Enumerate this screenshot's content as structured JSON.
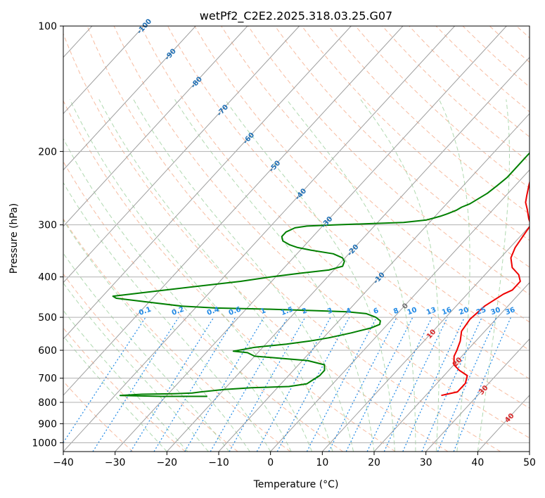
{
  "chart_data": {
    "type": "line",
    "title": "wetPf2_C2E2.2025.318.03.25.G07",
    "xlabel": "Temperature (°C)",
    "ylabel": "Pressure (hPa)",
    "xlim": [
      -40,
      50
    ],
    "ylim": [
      1050,
      100
    ],
    "y_scale": "log",
    "grid": true,
    "x_ticks": [
      -40,
      -30,
      -20,
      -10,
      0,
      10,
      20,
      30,
      40,
      50
    ],
    "y_ticks": [
      100,
      200,
      300,
      400,
      500,
      600,
      700,
      800,
      900,
      1000
    ],
    "colors": {
      "temperature": "#ee0000",
      "dewpoint": "#007f00",
      "isotherm": "#9e9e9e",
      "dry_adiabat": "#f4a582",
      "moist_adiabat": "#8fc98f",
      "mixing_ratio": "#1e88e5",
      "isotherm_label_neg": "#1f6fb4",
      "isotherm_label_pos": "#d62728",
      "isotherm_label_zero": "#707070"
    },
    "isotherm_labels": [
      "-100",
      "-90",
      "-80",
      "-70",
      "-60",
      "-50",
      "-40",
      "-30",
      "-20",
      "-10",
      "0",
      "10",
      "20",
      "30",
      "40"
    ],
    "mixing_ratio_labels": [
      "0.1",
      "0.2",
      "0.4",
      "0.6",
      "1",
      "1.5",
      "2",
      "3",
      "4",
      "6",
      "8",
      "10",
      "13",
      "16",
      "20",
      "25",
      "30",
      "36"
    ],
    "series": [
      {
        "key": "temperature",
        "points": [
          [
            23.0,
            770
          ],
          [
            25.5,
            755
          ],
          [
            25.5,
            720
          ],
          [
            24.5,
            690
          ],
          [
            22,
            670
          ],
          [
            20,
            650
          ],
          [
            18.5,
            620
          ],
          [
            18,
            600
          ],
          [
            17,
            570
          ],
          [
            15.5,
            540
          ],
          [
            15,
            505
          ],
          [
            15.5,
            470
          ],
          [
            17,
            440
          ],
          [
            18,
            430
          ],
          [
            18,
            410
          ],
          [
            16.5,
            395
          ],
          [
            14,
            380
          ],
          [
            12,
            360
          ],
          [
            11,
            340
          ],
          [
            10.5,
            320
          ],
          [
            10,
            300
          ],
          [
            8.5,
            290
          ],
          [
            6.5,
            275
          ],
          [
            5,
            265
          ],
          [
            4,
            255
          ],
          [
            2.5,
            240
          ],
          [
            1,
            225
          ],
          [
            -0.5,
            210
          ],
          [
            -1,
            200
          ],
          [
            -1,
            190
          ],
          [
            -0.5,
            175
          ],
          [
            0.5,
            165
          ],
          [
            1.5,
            158
          ],
          [
            2.5,
            152
          ],
          [
            3,
            145
          ],
          [
            3.5,
            138
          ],
          [
            3.5,
            130
          ],
          [
            4,
            125
          ],
          [
            4.5,
            120
          ],
          [
            5.5,
            116
          ],
          [
            6.5,
            112
          ],
          [
            7.5,
            108
          ],
          [
            8,
            104
          ],
          [
            8,
            100
          ]
        ]
      },
      {
        "key": "dewpoint",
        "points": [
          [
            -22,
            774
          ],
          [
            -31,
            774
          ],
          [
            -39,
            770
          ],
          [
            -35,
            765
          ],
          [
            -29,
            763
          ],
          [
            -25.5,
            760
          ],
          [
            -24,
            755
          ],
          [
            -20,
            745
          ],
          [
            -15,
            738
          ],
          [
            -8,
            733
          ],
          [
            -5,
            722
          ],
          [
            -4.5,
            705
          ],
          [
            -4,
            690
          ],
          [
            -4,
            670
          ],
          [
            -5,
            650
          ],
          [
            -9,
            635
          ],
          [
            -14,
            628
          ],
          [
            -20,
            620
          ],
          [
            -22,
            608
          ],
          [
            -25,
            603
          ],
          [
            -21.5,
            590
          ],
          [
            -16,
            580
          ],
          [
            -12,
            570
          ],
          [
            -9,
            560
          ],
          [
            -5.5,
            545
          ],
          [
            -2.5,
            530
          ],
          [
            -1.5,
            520
          ],
          [
            -2,
            510
          ],
          [
            -3.5,
            500
          ],
          [
            -6,
            490
          ],
          [
            -10,
            485
          ],
          [
            -16,
            482
          ],
          [
            -26,
            478
          ],
          [
            -36,
            475
          ],
          [
            -43,
            470
          ],
          [
            -50,
            460
          ],
          [
            -57,
            450
          ],
          [
            -58,
            445
          ],
          [
            -52,
            435
          ],
          [
            -44,
            422
          ],
          [
            -36,
            410
          ],
          [
            -31,
            400
          ],
          [
            -26,
            392
          ],
          [
            -21,
            385
          ],
          [
            -19,
            377
          ],
          [
            -19.5,
            367
          ],
          [
            -20.5,
            360
          ],
          [
            -23,
            352
          ],
          [
            -28,
            345
          ],
          [
            -31,
            340
          ],
          [
            -33,
            335
          ],
          [
            -35,
            328
          ],
          [
            -36,
            320
          ],
          [
            -36,
            312
          ],
          [
            -35,
            305
          ],
          [
            -33,
            302
          ],
          [
            -28,
            300
          ],
          [
            -21,
            298
          ],
          [
            -15,
            296
          ],
          [
            -13,
            294
          ],
          [
            -11,
            292
          ],
          [
            -10,
            289
          ],
          [
            -9,
            286
          ],
          [
            -8,
            282
          ],
          [
            -7,
            277
          ],
          [
            -6.5,
            272
          ],
          [
            -5.5,
            267
          ],
          [
            -5,
            262
          ],
          [
            -4,
            252
          ],
          [
            -3.5,
            242
          ],
          [
            -3,
            231
          ],
          [
            -3,
            220
          ],
          [
            -3,
            210
          ],
          [
            -3,
            200
          ],
          [
            -3,
            190
          ],
          [
            -3,
            180
          ],
          [
            -3,
            170
          ],
          [
            -3,
            162
          ],
          [
            -3.5,
            158
          ],
          [
            -4,
            155
          ],
          [
            -4,
            150
          ],
          [
            -3,
            145
          ],
          [
            -1,
            140
          ],
          [
            0,
            134
          ],
          [
            1,
            128
          ],
          [
            1.5,
            122
          ],
          [
            2,
            116
          ],
          [
            2.5,
            110
          ],
          [
            3,
            104
          ],
          [
            3,
            100
          ]
        ]
      }
    ]
  }
}
